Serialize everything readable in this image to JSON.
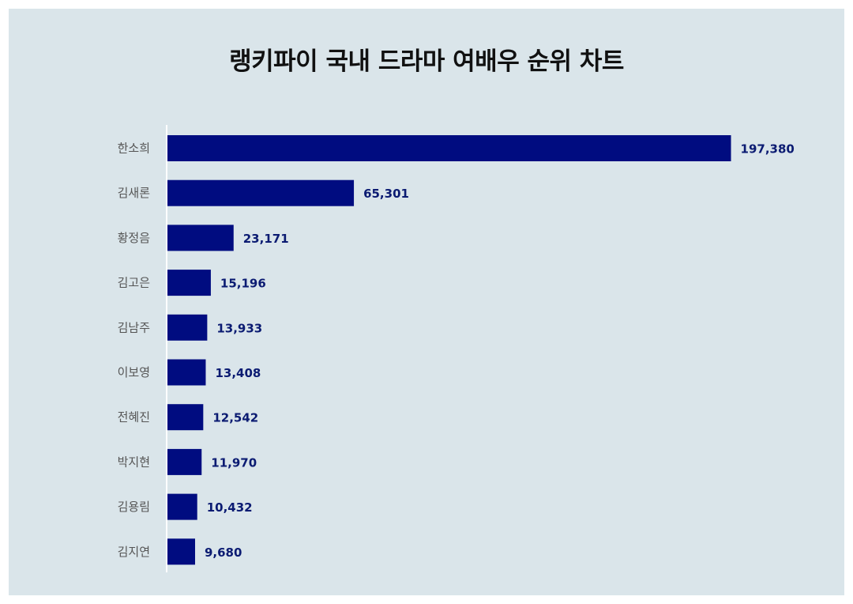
{
  "colors": {
    "background": "#dae5ea",
    "bar": "#000c80",
    "value_label": "#0b1b72",
    "axis": "#ffffff"
  },
  "chart_data": {
    "type": "bar",
    "orientation": "horizontal",
    "title": "랭키파이 국내 드라마 여배우 순위 차트",
    "categories": [
      "한소희",
      "김새론",
      "황정음",
      "김고은",
      "김남주",
      "이보영",
      "전혜진",
      "박지현",
      "김용림",
      "김지연"
    ],
    "values": [
      197380,
      65301,
      23171,
      15196,
      13933,
      13408,
      12542,
      11970,
      10432,
      9680
    ],
    "value_labels": [
      "197,380",
      "65,301",
      "23,171",
      "15,196",
      "13,933",
      "13,408",
      "12,542",
      "11,970",
      "10,432",
      "9,680"
    ],
    "xlim": [
      0,
      200000
    ],
    "grid": false,
    "legend": "none"
  }
}
